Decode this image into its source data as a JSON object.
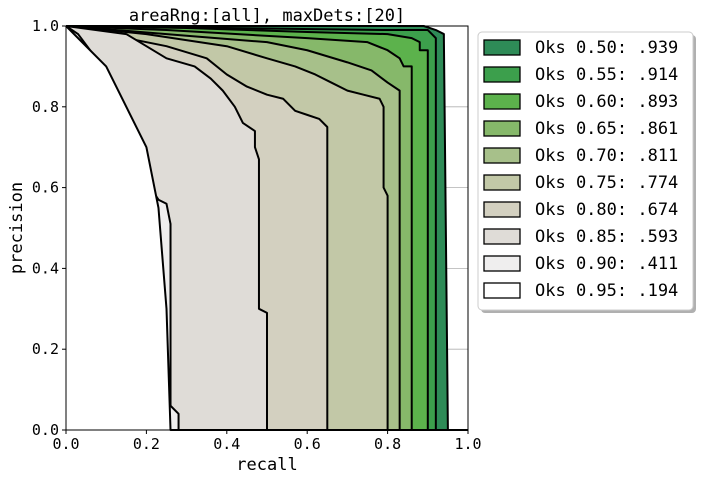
{
  "chart_data": {
    "type": "area",
    "title": "areaRng:[all], maxDets:[20]",
    "xlabel": "recall",
    "ylabel": "precision",
    "xlim": [
      0,
      1
    ],
    "ylim": [
      0,
      1
    ],
    "xticks": [
      "0.0",
      "0.2",
      "0.4",
      "0.6",
      "0.8",
      "1.0"
    ],
    "yticks": [
      "0.0",
      "0.2",
      "0.4",
      "0.6",
      "0.8",
      "1.0"
    ],
    "grid": true,
    "legend_position": "outside-right",
    "series": [
      {
        "name": "Oks 0.50: .939",
        "color": "#2e8b57",
        "x": [
          0,
          0.89,
          0.92,
          0.94,
          0.94,
          0.95,
          1.0
        ],
        "y": [
          1,
          1,
          0.99,
          0.98,
          0.97,
          0,
          0
        ]
      },
      {
        "name": "Oks 0.55: .914",
        "color": "#3c9f4c",
        "x": [
          0,
          0.8,
          0.9,
          0.91,
          0.92,
          0.92,
          1.0
        ],
        "y": [
          1,
          0.99,
          0.99,
          0.98,
          0.97,
          0,
          0
        ]
      },
      {
        "name": "Oks 0.60: .893",
        "color": "#5cb24c",
        "x": [
          0,
          0.3,
          0.6,
          0.8,
          0.86,
          0.88,
          0.88,
          0.9,
          0.9,
          1.0
        ],
        "y": [
          1,
          0.995,
          0.985,
          0.98,
          0.97,
          0.96,
          0.94,
          0.94,
          0,
          0
        ]
      },
      {
        "name": "Oks 0.65: .861",
        "color": "#86b86a",
        "x": [
          0,
          0.25,
          0.6,
          0.75,
          0.8,
          0.83,
          0.84,
          0.86,
          0.86,
          1.0
        ],
        "y": [
          1,
          0.99,
          0.97,
          0.96,
          0.94,
          0.92,
          0.9,
          0.9,
          0,
          0
        ]
      },
      {
        "name": "Oks 0.70: .811",
        "color": "#a7c08a",
        "x": [
          0,
          0.25,
          0.5,
          0.6,
          0.7,
          0.76,
          0.8,
          0.83,
          0.83,
          1.0
        ],
        "y": [
          1,
          0.98,
          0.96,
          0.94,
          0.91,
          0.89,
          0.86,
          0.84,
          0,
          0
        ]
      },
      {
        "name": "Oks 0.75: .774",
        "color": "#c2c8a7",
        "x": [
          0,
          0.2,
          0.4,
          0.5,
          0.57,
          0.62,
          0.66,
          0.7,
          0.74,
          0.78,
          0.79,
          0.79,
          0.8,
          0.8,
          1.0
        ],
        "y": [
          1,
          0.98,
          0.95,
          0.92,
          0.9,
          0.88,
          0.86,
          0.84,
          0.83,
          0.82,
          0.8,
          0.6,
          0.58,
          0,
          0
        ]
      },
      {
        "name": "Oks 0.80: .674",
        "color": "#d3d0c0",
        "x": [
          0,
          0.15,
          0.25,
          0.35,
          0.4,
          0.45,
          0.5,
          0.54,
          0.57,
          0.6,
          0.63,
          0.65,
          0.65,
          1.0
        ],
        "y": [
          1,
          0.97,
          0.95,
          0.92,
          0.88,
          0.85,
          0.83,
          0.82,
          0.79,
          0.78,
          0.77,
          0.75,
          0,
          0
        ]
      },
      {
        "name": "Oks 0.85: .593",
        "color": "#dfdcd7",
        "x": [
          0,
          0.15,
          0.2,
          0.25,
          0.32,
          0.36,
          0.39,
          0.42,
          0.44,
          0.47,
          0.47,
          0.48,
          0.48,
          0.5,
          0.5,
          1.0
        ],
        "y": [
          1,
          0.98,
          0.95,
          0.92,
          0.9,
          0.87,
          0.84,
          0.8,
          0.76,
          0.74,
          0.7,
          0.67,
          0.3,
          0.29,
          0,
          0
        ]
      },
      {
        "name": "Oks 0.90: .411",
        "color": "#efeeee",
        "x": [
          0,
          0.03,
          0.06,
          0.08,
          0.1,
          0.12,
          0.14,
          0.15,
          0.17,
          0.19,
          0.21,
          0.23,
          0.25,
          0.26,
          0.26,
          0.28,
          0.28,
          1.0
        ],
        "y": [
          1,
          0.98,
          0.94,
          0.9,
          0.85,
          0.8,
          0.76,
          0.72,
          0.68,
          0.64,
          0.6,
          0.57,
          0.56,
          0.51,
          0.06,
          0.04,
          0,
          0
        ]
      },
      {
        "name": "Oks 0.95: .194",
        "color": "#ffffff",
        "x": [
          0,
          0.1,
          0.15,
          0.2,
          0.23,
          0.25,
          0.26,
          1.0
        ],
        "y": [
          1,
          0.9,
          0.8,
          0.7,
          0.55,
          0.3,
          0,
          0
        ]
      }
    ]
  }
}
